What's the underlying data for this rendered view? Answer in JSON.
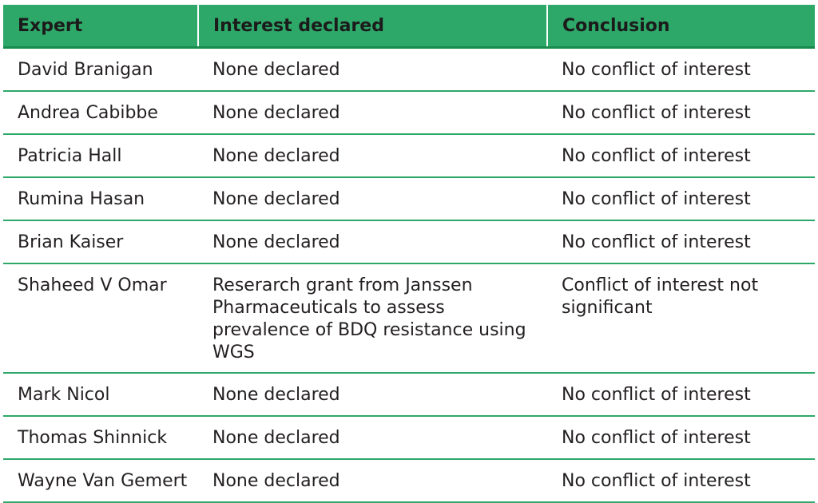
{
  "table": {
    "headers": [
      "Expert",
      "Interest declared",
      "Conclusion"
    ],
    "rows": [
      [
        "David Branigan",
        "None declared",
        "No conflict of interest"
      ],
      [
        "Andrea Cabibbe",
        "None declared",
        "No conflict of interest"
      ],
      [
        "Patricia Hall",
        "None declared",
        "No conflict of interest"
      ],
      [
        "Rumina Hasan",
        "None declared",
        "No conflict of interest"
      ],
      [
        "Brian Kaiser",
        "None declared",
        "No conflict of interest"
      ],
      [
        "Shaheed V Omar",
        "Reserarch grant from Janssen Pharmaceuticals to assess prevalence of BDQ resistance using WGS",
        "Conflict of interest not significant"
      ],
      [
        "Mark Nicol",
        "None declared",
        "No conflict of interest"
      ],
      [
        "Thomas Shinnick",
        "None declared",
        "No conflict of interest"
      ],
      [
        "Wayne Van Gemert",
        "None declared",
        "No conflict of interest"
      ]
    ]
  },
  "colors": {
    "header_bg": "#2ea869",
    "rule": "#2ea869",
    "text": "#231f20"
  }
}
